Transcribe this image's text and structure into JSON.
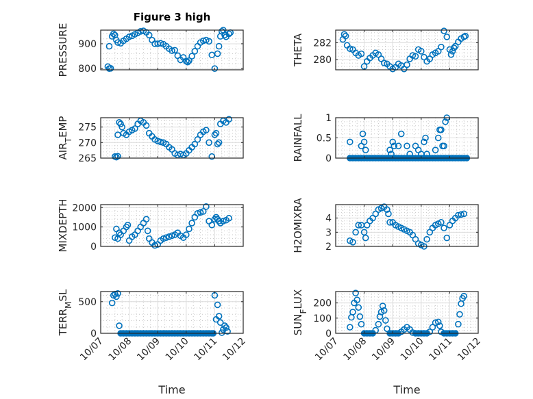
{
  "figure": {
    "title": "Figure 3 high",
    "marker_color": "#0072BD"
  },
  "chart_data": [
    {
      "type": "scatter",
      "title": "Figure 3 high",
      "xlabel": "",
      "ylabel": "PRESSURE",
      "ylabel_parts": [
        {
          "t": "PRESSURE"
        }
      ],
      "xlim": [
        0,
        5
      ],
      "ylim": [
        795,
        955
      ],
      "xticks": [
        0,
        1,
        2,
        3,
        4,
        5
      ],
      "xticklabels": [
        "10/07",
        "10/08",
        "10/09",
        "10/10",
        "10/11",
        "10/12"
      ],
      "show_xticklabels": false,
      "yticks": [
        800,
        900
      ],
      "yticklabels": [
        "800",
        "900"
      ],
      "grid": true,
      "x": [
        0.25,
        0.3,
        0.35,
        0.3,
        0.4,
        0.45,
        0.5,
        0.55,
        0.6,
        0.7,
        0.8,
        0.9,
        1.0,
        1.1,
        1.2,
        1.3,
        1.4,
        1.5,
        1.6,
        1.7,
        1.8,
        1.9,
        2.0,
        2.1,
        2.2,
        2.3,
        2.4,
        2.5,
        2.6,
        2.7,
        2.8,
        2.9,
        3.0,
        3.05,
        3.1,
        3.2,
        3.3,
        3.4,
        3.5,
        3.6,
        3.7,
        3.8,
        3.9,
        4.0,
        4.1,
        4.15,
        4.2,
        4.25,
        4.3,
        4.35,
        4.4,
        4.5,
        4.55
      ],
      "y": [
        808,
        800,
        801,
        890,
        930,
        940,
        935,
        915,
        905,
        902,
        912,
        920,
        928,
        932,
        938,
        944,
        950,
        952,
        946,
        935,
        915,
        900,
        900,
        902,
        898,
        890,
        880,
        872,
        874,
        852,
        835,
        845,
        830,
        826,
        832,
        850,
        870,
        890,
        905,
        912,
        915,
        910,
        855,
        800,
        860,
        890,
        930,
        950,
        955,
        935,
        928,
        940,
        945
      ]
    },
    {
      "type": "scatter",
      "ylabel": "THETA",
      "ylabel_parts": [
        {
          "t": "THETA"
        }
      ],
      "xlim": [
        0,
        5
      ],
      "ylim": [
        278.8,
        283.5
      ],
      "xticks": [
        0,
        1,
        2,
        3,
        4,
        5
      ],
      "xticklabels": [
        "10/07",
        "10/08",
        "10/09",
        "10/10",
        "10/11",
        "10/12"
      ],
      "show_xticklabels": false,
      "yticks": [
        280,
        282
      ],
      "yticklabels": [
        "280",
        "282"
      ],
      "grid": true,
      "x": [
        0.25,
        0.3,
        0.35,
        0.4,
        0.5,
        0.6,
        0.7,
        0.8,
        0.9,
        1.0,
        1.1,
        1.2,
        1.3,
        1.4,
        1.5,
        1.6,
        1.7,
        1.8,
        1.9,
        2.0,
        2.1,
        2.2,
        2.3,
        2.4,
        2.5,
        2.6,
        2.7,
        2.8,
        2.9,
        3.0,
        3.1,
        3.2,
        3.3,
        3.4,
        3.5,
        3.6,
        3.7,
        3.8,
        3.9,
        4.0,
        4.05,
        4.1,
        4.15,
        4.2,
        4.3,
        4.4,
        4.5,
        4.55
      ],
      "y": [
        282.4,
        283.0,
        282.8,
        281.7,
        281.3,
        281.2,
        280.8,
        280.5,
        280.7,
        279.2,
        279.8,
        280.2,
        280.5,
        280.8,
        280.6,
        280.1,
        279.6,
        279.5,
        279.2,
        278.9,
        279.1,
        279.5,
        279.3,
        278.9,
        279.4,
        280.1,
        280.5,
        280.4,
        281.2,
        281.0,
        280.3,
        279.8,
        280.1,
        280.6,
        280.8,
        281.0,
        281.5,
        283.4,
        282.7,
        281.2,
        280.6,
        281.0,
        281.4,
        281.6,
        282.1,
        282.5,
        282.7,
        282.8
      ]
    },
    {
      "type": "scatter",
      "ylabel": "AIR_TEMP",
      "ylabel_parts": [
        {
          "t": "AIR"
        },
        {
          "t": "T",
          "sub": true
        },
        {
          "t": "EMP"
        }
      ],
      "xlim": [
        0,
        5
      ],
      "ylim": [
        265,
        278
      ],
      "xticks": [
        0,
        1,
        2,
        3,
        4,
        5
      ],
      "xticklabels": [
        "10/07",
        "10/08",
        "10/09",
        "10/10",
        "10/11",
        "10/12"
      ],
      "show_xticklabels": false,
      "yticks": [
        265,
        270,
        275
      ],
      "yticklabels": [
        "265",
        "270",
        "275"
      ],
      "grid": true,
      "x": [
        0.5,
        0.55,
        0.6,
        0.6,
        0.65,
        0.7,
        0.75,
        0.8,
        0.9,
        1.0,
        1.1,
        1.2,
        1.3,
        1.4,
        1.5,
        1.6,
        1.7,
        1.8,
        1.9,
        2.0,
        2.1,
        2.2,
        2.3,
        2.4,
        2.5,
        2.6,
        2.7,
        2.8,
        2.9,
        3.0,
        3.1,
        3.2,
        3.3,
        3.4,
        3.5,
        3.6,
        3.7,
        3.8,
        3.9,
        4.0,
        4.05,
        4.1,
        4.15,
        4.2,
        4.3,
        4.4,
        4.5
      ],
      "y": [
        265.5,
        265.3,
        265.6,
        272.5,
        276.5,
        276,
        275,
        273,
        272.5,
        273.5,
        274,
        274.5,
        276,
        277,
        276.5,
        275.5,
        273,
        272,
        271,
        270.5,
        270.2,
        270,
        269.5,
        268.5,
        267.8,
        266.5,
        266.0,
        266.3,
        266.0,
        266.5,
        267.5,
        268.5,
        269.5,
        271,
        272.5,
        273.5,
        274,
        270,
        265.5,
        272.5,
        273,
        269.5,
        270,
        276,
        277,
        276.5,
        277.5
      ]
    },
    {
      "type": "scatter",
      "ylabel": "RAINFALL",
      "ylabel_parts": [
        {
          "t": "RAINFALL"
        }
      ],
      "xlim": [
        0,
        5
      ],
      "ylim": [
        0,
        1
      ],
      "xticks": [
        0,
        1,
        2,
        3,
        4,
        5
      ],
      "xticklabels": [
        "10/07",
        "10/08",
        "10/09",
        "10/10",
        "10/11",
        "10/12"
      ],
      "show_xticklabels": false,
      "yticks": [
        0,
        0.5,
        1
      ],
      "yticklabels": [
        "0",
        "0.5",
        "1"
      ],
      "grid": true,
      "x": [
        0.5,
        0.6,
        0.7,
        0.8,
        0.9,
        1.0,
        1.1,
        1.2,
        1.3,
        1.4,
        1.5,
        1.6,
        1.7,
        1.8,
        1.9,
        2.0,
        2.1,
        2.2,
        2.3,
        2.4,
        2.5,
        2.6,
        2.7,
        2.8,
        2.9,
        3.0,
        3.1,
        3.2,
        3.3,
        3.4,
        3.5,
        3.6,
        3.7,
        3.8,
        3.9,
        4.0,
        4.1,
        4.2,
        4.3,
        4.4,
        4.5,
        4.6,
        0.5,
        0.9,
        0.95,
        1.0,
        1.05,
        1.9,
        1.95,
        2.0,
        2.05,
        2.2,
        2.3,
        2.5,
        2.6,
        2.8,
        2.9,
        3.0,
        3.1,
        3.15,
        3.2,
        3.5,
        3.6,
        3.65,
        3.7,
        3.75,
        3.8,
        3.85,
        3.9
      ],
      "y": [
        0,
        0,
        0,
        0,
        0,
        0,
        0,
        0,
        0,
        0,
        0,
        0,
        0,
        0,
        0,
        0,
        0,
        0,
        0,
        0,
        0,
        0,
        0,
        0,
        0,
        0,
        0,
        0,
        0,
        0,
        0,
        0,
        0,
        0,
        0,
        0,
        0,
        0,
        0,
        0,
        0,
        0,
        0.4,
        0.3,
        0.6,
        0.4,
        0.2,
        0.2,
        0.1,
        0.4,
        0.3,
        0.3,
        0.6,
        0.3,
        0.1,
        0.3,
        0.2,
        0.1,
        0.4,
        0.5,
        0.1,
        0.2,
        0.5,
        0.7,
        0.7,
        0.3,
        0.3,
        0.9,
        1.0
      ]
    },
    {
      "type": "scatter",
      "ylabel": "MIXDEPTH",
      "ylabel_parts": [
        {
          "t": "MIXDEPTH"
        }
      ],
      "xlim": [
        0,
        5
      ],
      "ylim": [
        0,
        2150
      ],
      "xticks": [
        0,
        1,
        2,
        3,
        4,
        5
      ],
      "xticklabels": [
        "10/07",
        "10/08",
        "10/09",
        "10/10",
        "10/11",
        "10/12"
      ],
      "show_xticklabels": false,
      "yticks": [
        0,
        1000,
        2000
      ],
      "yticklabels": [
        "0",
        "1000",
        "2000"
      ],
      "grid": true,
      "x": [
        0.5,
        0.55,
        0.6,
        0.65,
        0.7,
        0.8,
        0.9,
        0.95,
        1.0,
        1.1,
        1.2,
        1.3,
        1.4,
        1.5,
        1.6,
        1.65,
        1.7,
        1.8,
        1.9,
        2.0,
        2.1,
        2.2,
        2.3,
        2.4,
        2.5,
        2.6,
        2.7,
        2.8,
        2.9,
        3.0,
        3.1,
        3.2,
        3.3,
        3.4,
        3.5,
        3.6,
        3.7,
        3.8,
        3.9,
        4.0,
        4.05,
        4.1,
        4.15,
        4.2,
        4.3,
        4.4,
        4.5
      ],
      "y": [
        450,
        900,
        400,
        700,
        600,
        800,
        1000,
        1100,
        300,
        500,
        600,
        800,
        1000,
        1200,
        1400,
        800,
        400,
        200,
        50,
        100,
        300,
        400,
        450,
        500,
        550,
        600,
        700,
        550,
        450,
        600,
        900,
        1200,
        1500,
        1700,
        1750,
        1800,
        2050,
        1300,
        1100,
        1400,
        1500,
        1400,
        1300,
        1200,
        1300,
        1350,
        1450
      ]
    },
    {
      "type": "scatter",
      "ylabel": "H2OMIXRA",
      "ylabel_parts": [
        {
          "t": "H2OMIXRA"
        }
      ],
      "xlim": [
        0,
        5
      ],
      "ylim": [
        2,
        4.95
      ],
      "xticks": [
        0,
        1,
        2,
        3,
        4,
        5
      ],
      "xticklabels": [
        "10/07",
        "10/08",
        "10/09",
        "10/10",
        "10/11",
        "10/12"
      ],
      "show_xticklabels": false,
      "yticks": [
        2,
        3,
        4
      ],
      "yticklabels": [
        "2",
        "3",
        "4"
      ],
      "grid": true,
      "x": [
        0.5,
        0.6,
        0.7,
        0.8,
        0.9,
        1.0,
        1.05,
        1.1,
        1.2,
        1.3,
        1.4,
        1.5,
        1.6,
        1.7,
        1.8,
        1.85,
        1.9,
        2.0,
        2.1,
        2.2,
        2.3,
        2.4,
        2.5,
        2.6,
        2.7,
        2.8,
        2.9,
        3.0,
        3.1,
        3.2,
        3.3,
        3.4,
        3.5,
        3.6,
        3.7,
        3.8,
        3.9,
        4.0,
        4.1,
        4.2,
        4.3,
        4.4,
        4.5
      ],
      "y": [
        2.4,
        2.3,
        3.0,
        3.5,
        3.5,
        3.0,
        2.6,
        3.5,
        3.8,
        4.0,
        4.3,
        4.6,
        4.7,
        4.8,
        4.6,
        4.3,
        3.7,
        3.7,
        3.5,
        3.4,
        3.3,
        3.2,
        3.1,
        3.0,
        2.8,
        2.5,
        2.2,
        2.1,
        2.0,
        2.5,
        3.0,
        3.3,
        3.5,
        3.6,
        3.7,
        3.3,
        2.6,
        3.5,
        3.8,
        4.0,
        4.2,
        4.25,
        4.3
      ]
    },
    {
      "type": "scatter",
      "ylabel": "TERR_MSL",
      "ylabel_parts": [
        {
          "t": "TERR"
        },
        {
          "t": "M",
          "sub": true
        },
        {
          "t": "SL"
        }
      ],
      "xlabel": "Time",
      "xlim": [
        0,
        5
      ],
      "ylim": [
        0,
        660
      ],
      "xticks": [
        0,
        1,
        2,
        3,
        4,
        5
      ],
      "xticklabels": [
        "10/07",
        "10/08",
        "10/09",
        "10/10",
        "10/11",
        "10/12"
      ],
      "show_xticklabels": true,
      "yticks": [
        0,
        500
      ],
      "yticklabels": [
        "0",
        "500"
      ],
      "grid": true,
      "x": [
        0.4,
        0.45,
        0.5,
        0.55,
        0.6,
        0.65,
        0.7,
        0.8,
        0.9,
        1.0,
        1.1,
        1.2,
        1.3,
        1.4,
        1.5,
        1.6,
        1.7,
        1.8,
        1.9,
        2.0,
        2.1,
        2.2,
        2.3,
        2.4,
        2.5,
        2.6,
        2.7,
        2.8,
        2.9,
        3.0,
        3.1,
        3.2,
        3.3,
        3.4,
        3.5,
        3.6,
        3.7,
        3.8,
        3.9,
        3.95,
        4.0,
        4.05,
        4.1,
        4.15,
        4.2,
        4.25,
        4.3,
        4.35,
        4.4,
        4.45
      ],
      "y": [
        480,
        600,
        620,
        580,
        630,
        120,
        0,
        0,
        0,
        0,
        0,
        0,
        0,
        0,
        0,
        0,
        0,
        0,
        0,
        0,
        0,
        0,
        0,
        0,
        0,
        0,
        0,
        0,
        0,
        0,
        0,
        0,
        0,
        0,
        0,
        0,
        0,
        0,
        0,
        0,
        600,
        220,
        450,
        270,
        170,
        10,
        60,
        120,
        90,
        30
      ]
    },
    {
      "type": "scatter",
      "ylabel": "SUN_FLUX",
      "ylabel_parts": [
        {
          "t": "SUN"
        },
        {
          "t": "F",
          "sub": true
        },
        {
          "t": "LUX"
        }
      ],
      "xlabel": "Time",
      "xlim": [
        0,
        5
      ],
      "ylim": [
        0,
        275
      ],
      "xticks": [
        0,
        1,
        2,
        3,
        4,
        5
      ],
      "xticklabels": [
        "10/07",
        "10/08",
        "10/09",
        "10/10",
        "10/11",
        "10/12"
      ],
      "show_xticklabels": true,
      "yticks": [
        0,
        100,
        200
      ],
      "yticklabels": [
        "0",
        "100",
        "200"
      ],
      "grid": true,
      "x": [
        0.5,
        0.55,
        0.6,
        0.65,
        0.7,
        0.75,
        0.8,
        0.85,
        0.9,
        1.0,
        1.1,
        1.2,
        1.3,
        1.4,
        1.5,
        1.55,
        1.6,
        1.65,
        1.7,
        1.75,
        1.8,
        1.9,
        2.0,
        2.1,
        2.2,
        2.3,
        2.4,
        2.5,
        2.6,
        2.7,
        2.8,
        2.9,
        3.0,
        3.1,
        3.2,
        3.3,
        3.4,
        3.5,
        3.6,
        3.65,
        3.7,
        3.8,
        3.9,
        4.0,
        4.1,
        4.2,
        4.3,
        4.35,
        4.4,
        4.45,
        4.5
      ],
      "y": [
        40,
        105,
        140,
        200,
        265,
        220,
        170,
        110,
        60,
        0,
        0,
        0,
        0,
        20,
        60,
        110,
        140,
        180,
        150,
        85,
        30,
        0,
        0,
        0,
        0,
        10,
        25,
        40,
        25,
        5,
        0,
        0,
        0,
        0,
        0,
        10,
        40,
        70,
        75,
        50,
        10,
        0,
        0,
        0,
        0,
        0,
        60,
        125,
        195,
        230,
        245
      ]
    }
  ]
}
